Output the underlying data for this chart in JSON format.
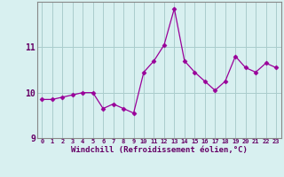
{
  "x": [
    0,
    1,
    2,
    3,
    4,
    5,
    6,
    7,
    8,
    9,
    10,
    11,
    12,
    13,
    14,
    15,
    16,
    17,
    18,
    19,
    20,
    21,
    22,
    23
  ],
  "y": [
    9.85,
    9.85,
    9.9,
    9.95,
    10.0,
    10.0,
    9.65,
    9.75,
    9.65,
    9.55,
    10.45,
    10.7,
    11.05,
    11.85,
    10.7,
    10.45,
    10.25,
    10.05,
    10.25,
    10.8,
    10.55,
    10.45,
    10.65,
    10.55
  ],
  "xlabel": "Windchill (Refroidissement éolien,°C)",
  "ylim": [
    9.0,
    12.0
  ],
  "xlim": [
    -0.5,
    23.5
  ],
  "yticks": [
    9,
    10,
    11
  ],
  "xtick_labels": [
    "0",
    "1",
    "2",
    "3",
    "4",
    "5",
    "6",
    "7",
    "8",
    "9",
    "10",
    "11",
    "12",
    "13",
    "14",
    "15",
    "16",
    "17",
    "18",
    "19",
    "20",
    "21",
    "22",
    "23"
  ],
  "line_color": "#990099",
  "marker": "D",
  "marker_size": 2.5,
  "bg_color": "#d8f0f0",
  "grid_color": "#aacccc",
  "label_color": "#660066",
  "tick_color": "#660066",
  "font_family": "monospace",
  "xlabel_fontsize": 6.5,
  "ytick_fontsize": 7,
  "xtick_fontsize": 5.0
}
